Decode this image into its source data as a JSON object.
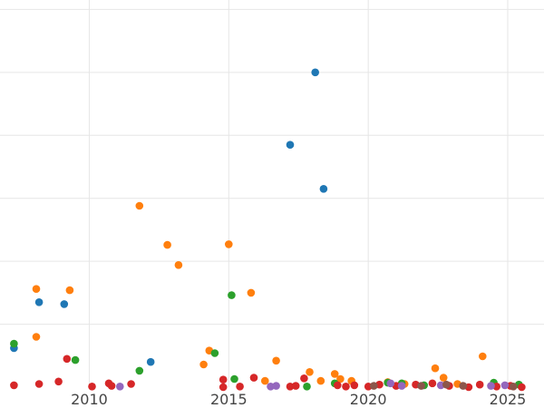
{
  "chart_data": {
    "type": "scatter",
    "title": "",
    "xlabel": "",
    "ylabel": "",
    "x_unit": "year",
    "xlim": [
      2006.8,
      2026.3
    ],
    "ylim": [
      0,
      6.15
    ],
    "x_ticks": [
      2010,
      2015,
      2020,
      2025
    ],
    "x_tick_labels": [
      "2010",
      "2015",
      "2020",
      "2025"
    ],
    "y_gridlines": [
      1,
      2,
      3,
      4,
      5,
      6
    ],
    "grid": true,
    "legend": "none",
    "series": [
      {
        "color": "#1f77b4",
        "points": [
          [
            2007.3,
            0.62
          ],
          [
            2008.2,
            1.35
          ],
          [
            2009.1,
            1.32
          ],
          [
            2012.2,
            0.4
          ],
          [
            2017.2,
            3.85
          ],
          [
            2018.1,
            5.0
          ],
          [
            2018.4,
            3.15
          ]
        ]
      },
      {
        "color": "#ff7f0e",
        "points": [
          [
            2008.1,
            0.8
          ],
          [
            2008.1,
            1.56
          ],
          [
            2009.3,
            1.54
          ],
          [
            2011.8,
            2.88
          ],
          [
            2012.8,
            2.26
          ],
          [
            2013.2,
            1.94
          ],
          [
            2014.1,
            0.36
          ],
          [
            2014.3,
            0.58
          ],
          [
            2015.0,
            2.27
          ],
          [
            2015.8,
            1.5
          ],
          [
            2016.3,
            0.1
          ],
          [
            2016.7,
            0.42
          ],
          [
            2017.9,
            0.24
          ],
          [
            2018.3,
            0.1
          ],
          [
            2018.8,
            0.21
          ],
          [
            2019.0,
            0.13
          ],
          [
            2019.4,
            0.1
          ],
          [
            2020.7,
            0.08
          ],
          [
            2021.3,
            0.05
          ],
          [
            2022.4,
            0.3
          ],
          [
            2022.7,
            0.15
          ],
          [
            2023.2,
            0.05
          ],
          [
            2024.1,
            0.49
          ]
        ]
      },
      {
        "color": "#2ca02c",
        "points": [
          [
            2007.3,
            0.69
          ],
          [
            2009.5,
            0.43
          ],
          [
            2011.8,
            0.26
          ],
          [
            2014.5,
            0.54
          ],
          [
            2015.1,
            1.46
          ],
          [
            2015.2,
            0.13
          ],
          [
            2017.8,
            0.01
          ],
          [
            2018.8,
            0.06
          ],
          [
            2020.7,
            0.07
          ],
          [
            2021.2,
            0.06
          ],
          [
            2022.0,
            0.03
          ],
          [
            2024.5,
            0.07
          ],
          [
            2025.4,
            0.04
          ]
        ]
      },
      {
        "color": "#d62728",
        "points": [
          [
            2007.3,
            0.03
          ],
          [
            2008.2,
            0.05
          ],
          [
            2008.9,
            0.09
          ],
          [
            2009.2,
            0.45
          ],
          [
            2010.1,
            0.01
          ],
          [
            2010.7,
            0.06
          ],
          [
            2010.8,
            0.02
          ],
          [
            2011.5,
            0.05
          ],
          [
            2014.8,
            0.12
          ],
          [
            2014.8,
            0.0
          ],
          [
            2015.4,
            0.01
          ],
          [
            2015.9,
            0.15
          ],
          [
            2017.2,
            0.01
          ],
          [
            2017.4,
            0.02
          ],
          [
            2017.7,
            0.14
          ],
          [
            2018.9,
            0.03
          ],
          [
            2019.2,
            0.01
          ],
          [
            2019.5,
            0.03
          ],
          [
            2020.0,
            0.01
          ],
          [
            2020.4,
            0.04
          ],
          [
            2021.0,
            0.02
          ],
          [
            2021.7,
            0.04
          ],
          [
            2022.3,
            0.06
          ],
          [
            2022.9,
            0.02
          ],
          [
            2023.6,
            0.0
          ],
          [
            2024.0,
            0.04
          ],
          [
            2024.6,
            0.01
          ],
          [
            2025.1,
            0.02
          ],
          [
            2025.5,
            0.0
          ]
        ]
      },
      {
        "color": "#9467bd",
        "points": [
          [
            2011.1,
            0.01
          ],
          [
            2016.5,
            0.01
          ],
          [
            2016.7,
            0.02
          ],
          [
            2020.8,
            0.06
          ],
          [
            2021.2,
            0.02
          ],
          [
            2022.6,
            0.03
          ],
          [
            2024.4,
            0.02
          ],
          [
            2024.9,
            0.03
          ]
        ]
      },
      {
        "color": "#8c564b",
        "points": [
          [
            2020.2,
            0.02
          ],
          [
            2021.9,
            0.02
          ],
          [
            2022.8,
            0.04
          ],
          [
            2023.4,
            0.02
          ],
          [
            2025.2,
            0.01
          ]
        ]
      }
    ]
  }
}
